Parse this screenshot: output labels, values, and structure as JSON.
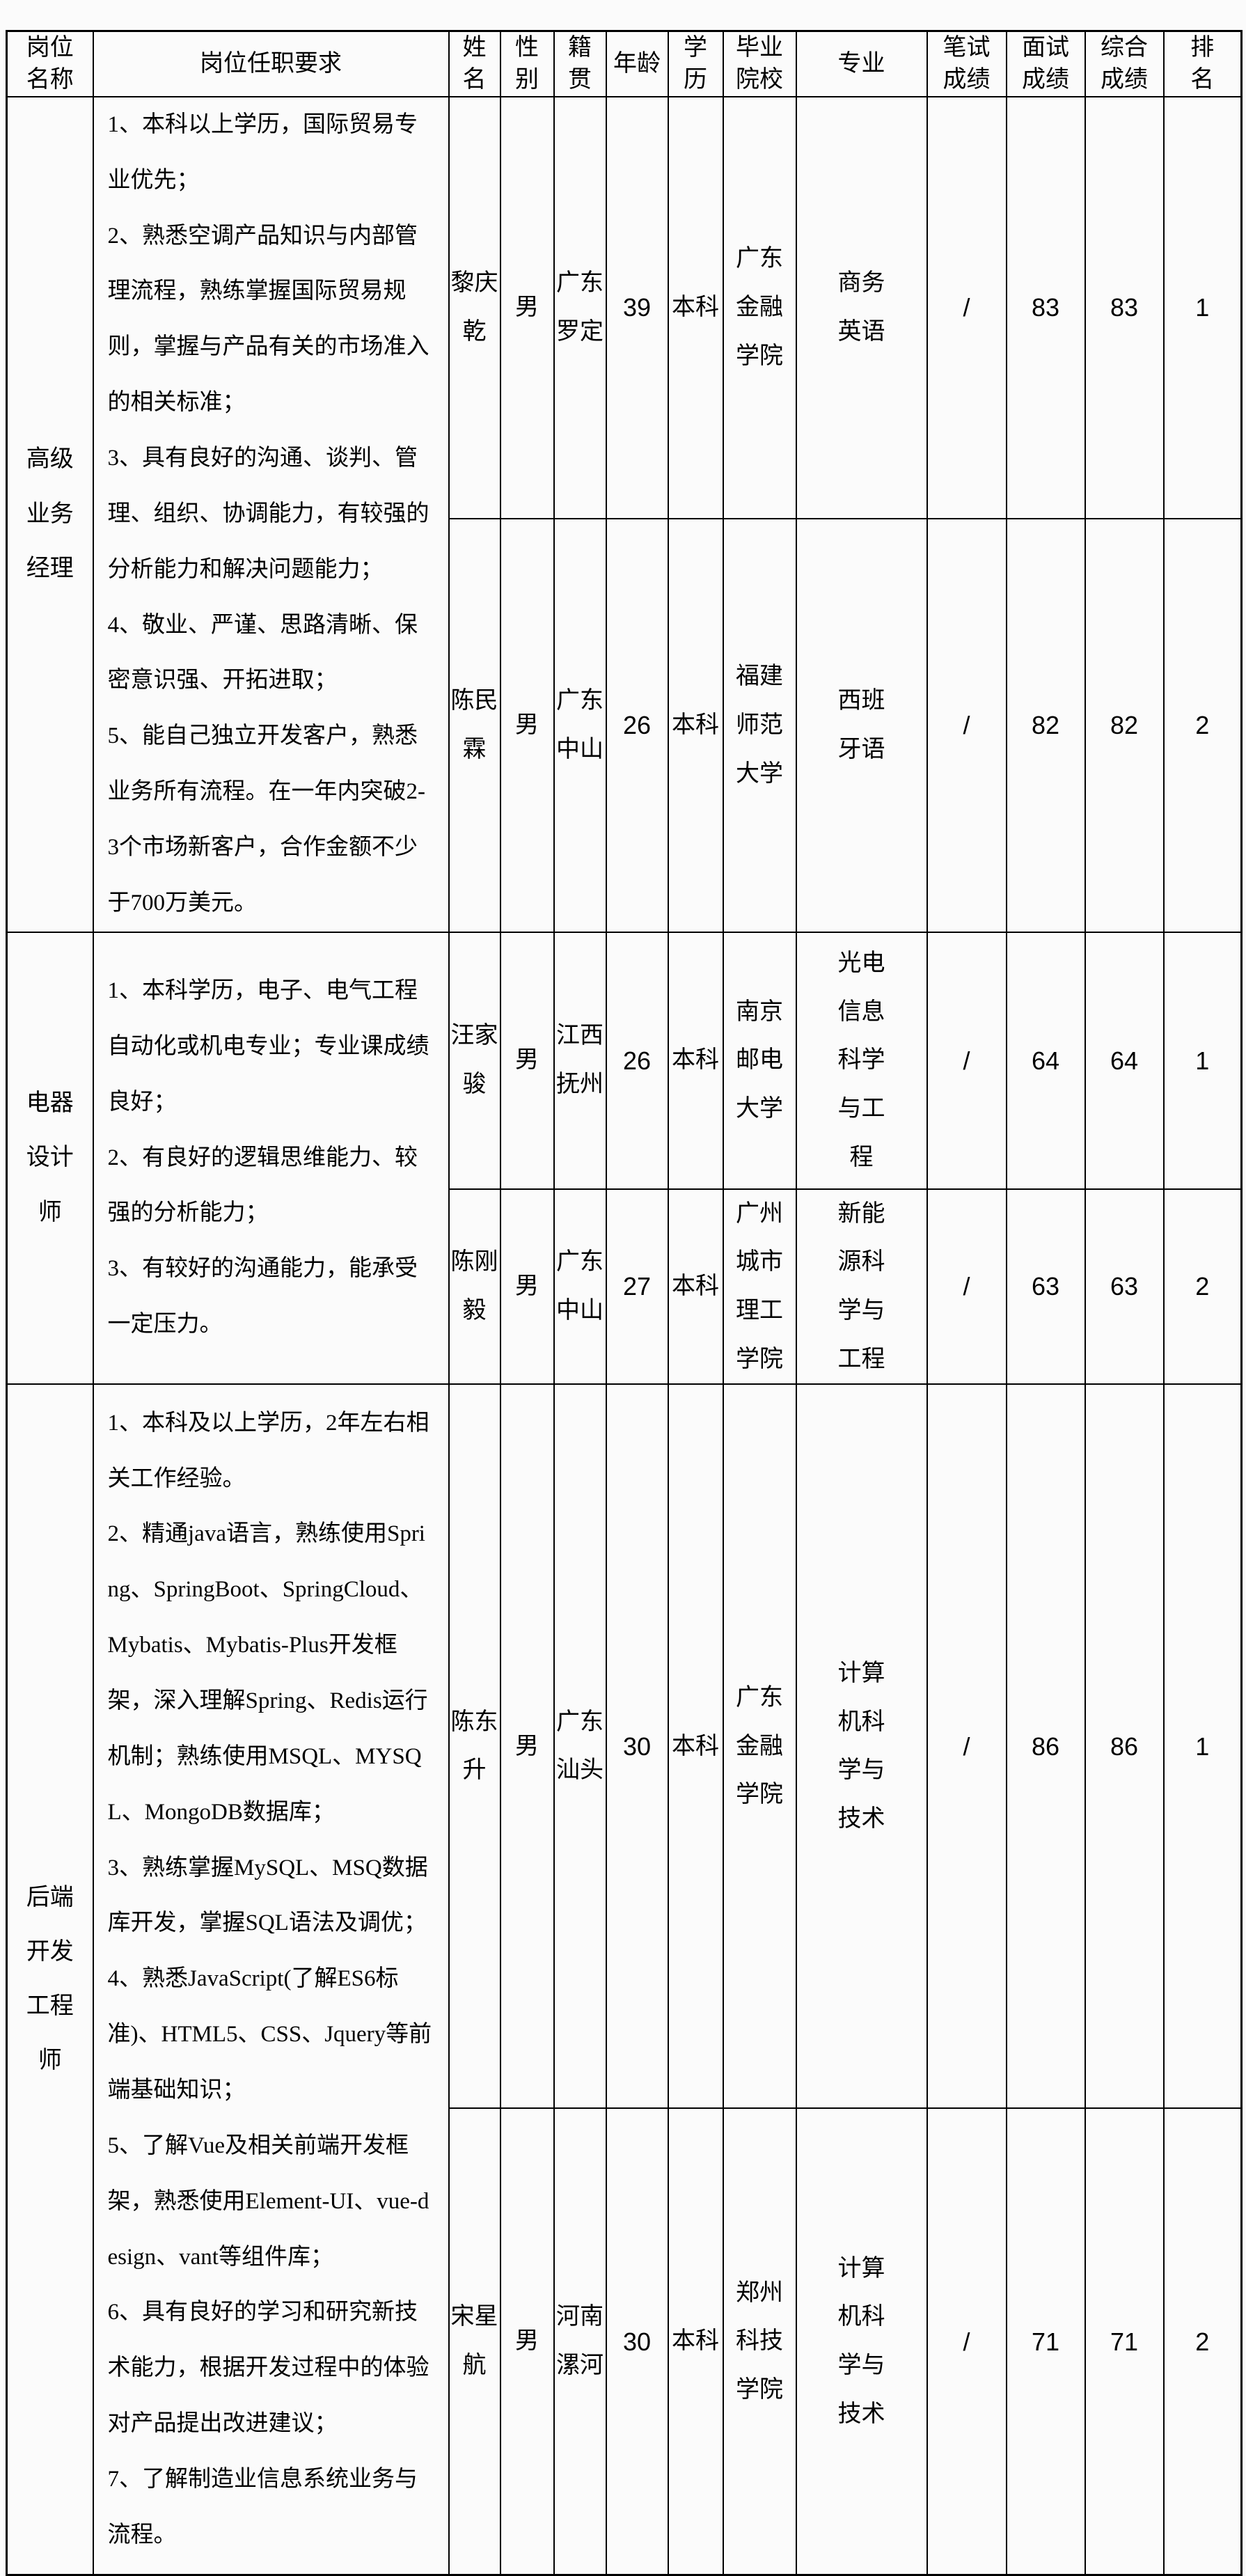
{
  "table": {
    "headers": {
      "position": "岗位\n名称",
      "requirements": "岗位任职要求",
      "name": "姓\n名",
      "gender": "性\n别",
      "origin": "籍\n贯",
      "age": "年龄",
      "education": "学\n历",
      "school": "毕业\n院校",
      "major": "专业",
      "written_score": "笔试\n成绩",
      "interview_score": "面试\n成绩",
      "overall_score": "综合\n成绩",
      "rank": "排\n名"
    },
    "sections": [
      {
        "position": "高级业务经理",
        "requirements": [
          "1、本科以上学历，国际贸易专业优先；",
          "2、熟悉空调产品知识与内部管理流程，熟练掌握国际贸易规则，掌握与产品有关的市场准入的相关标准；",
          "3、具有良好的沟通、谈判、管理、组织、协调能力，有较强的分析能力和解决问题能力；",
          "4、敬业、严谨、思路清晰、保密意识强、开拓进取；",
          "5、能自己独立开发客户，熟悉业务所有流程。在一年内突破2-3个市场新客户，合作金额不少于700万美元。"
        ],
        "candidates": [
          {
            "name": "黎庆乾",
            "gender": "男",
            "origin": "广东罗定",
            "age": "39",
            "education": "本科",
            "school": "广东金融学院",
            "major": "商务英语",
            "written_score": "/",
            "interview_score": "83",
            "overall_score": "83",
            "rank": "1"
          },
          {
            "name": "陈民霖",
            "gender": "男",
            "origin": "广东中山",
            "age": "26",
            "education": "本科",
            "school": "福建师范大学",
            "major": "西班牙语",
            "written_score": "/",
            "interview_score": "82",
            "overall_score": "82",
            "rank": "2"
          }
        ]
      },
      {
        "position": "电器设计师",
        "requirements": [
          "1、本科学历，电子、电气工程自动化或机电专业；专业课成绩良好；",
          "2、有良好的逻辑思维能力、较强的分析能力；",
          "3、有较好的沟通能力，能承受一定压力。"
        ],
        "candidates": [
          {
            "name": "汪家骏",
            "gender": "男",
            "origin": "江西抚州",
            "age": "26",
            "education": "本科",
            "school": "南京邮电大学",
            "major": "光电信息科学与工程",
            "written_score": "/",
            "interview_score": "64",
            "overall_score": "64",
            "rank": "1"
          },
          {
            "name": "陈刚毅",
            "gender": "男",
            "origin": "广东中山",
            "age": "27",
            "education": "本科",
            "school": "广州城市理工学院",
            "major": "新能源科学与工程",
            "written_score": "/",
            "interview_score": "63",
            "overall_score": "63",
            "rank": "2"
          }
        ]
      },
      {
        "position": "后端开发工程师",
        "requirements": [
          "1、本科及以上学历，2年左右相关工作经验。",
          "2、精通java语言，熟练使用Spring、SpringBoot、SpringCloud、Mybatis、Mybatis-Plus开发框架，深入理解Spring、Redis运行机制；熟练使用MSQL、MYSQL、MongoDB数据库；",
          "3、熟练掌握MySQL、MSQ数据库开发，掌握SQL语法及调优；",
          "4、熟悉JavaScript(了解ES6标准)、HTML5、CSS、Jquery等前端基础知识；",
          "5、了解Vue及相关前端开发框架，熟悉使用Element-UI、vue-design、vant等组件库；",
          "6、具有良好的学习和研究新技术能力，根据开发过程中的体验对产品提出改进建议；",
          "7、了解制造业信息系统业务与流程。"
        ],
        "candidates": [
          {
            "name": "陈东升",
            "gender": "男",
            "origin": "广东汕头",
            "age": "30",
            "education": "本科",
            "school": "广东金融学院",
            "major": "计算机科学与技术",
            "written_score": "/",
            "interview_score": "86",
            "overall_score": "86",
            "rank": "1"
          },
          {
            "name": "宋星航",
            "gender": "男",
            "origin": "河南漯河",
            "age": "30",
            "education": "本科",
            "school": "郑州科技学院",
            "major": "计算机科学与技术",
            "written_score": "/",
            "interview_score": "71",
            "overall_score": "71",
            "rank": "2"
          }
        ]
      }
    ]
  },
  "colors": {
    "border": "#000000",
    "text": "#000000",
    "background": "#fbfbfb"
  }
}
